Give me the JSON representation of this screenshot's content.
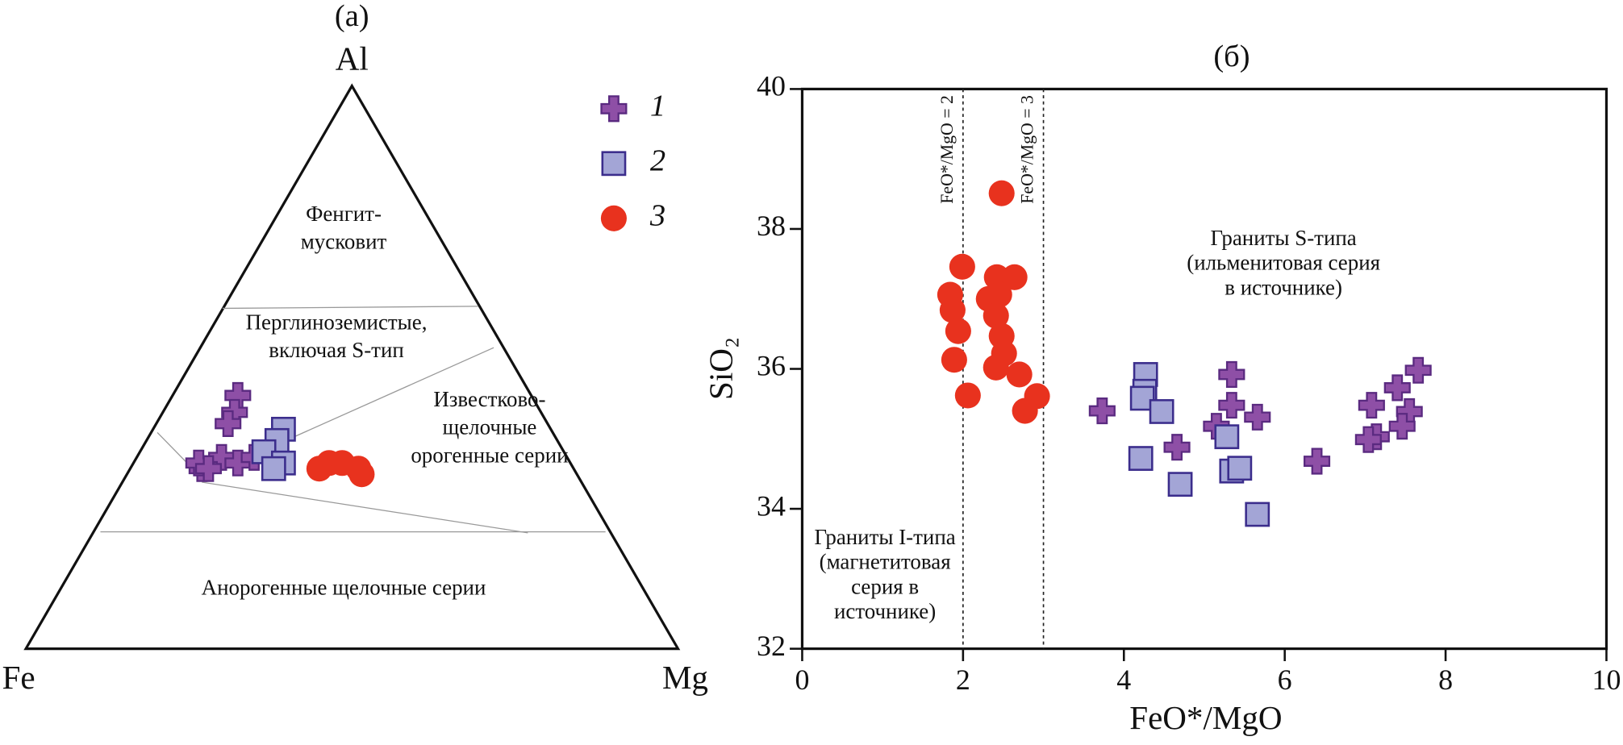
{
  "chart_data": [
    {
      "type": "ternary",
      "title": "(a)",
      "corners": {
        "top": "Al",
        "left": "Fe",
        "right": "Mg"
      },
      "fields": [
        {
          "lines": [
            "Фенгит-",
            "мусковит"
          ]
        },
        {
          "lines": [
            "Перглиноземистые,",
            "включая S-тип"
          ]
        },
        {
          "lines": [
            "Известково-",
            "щелочные",
            "орогенные серии"
          ]
        },
        {
          "lines": [
            "Анорогенные щелочные серии"
          ]
        }
      ],
      "series": [
        {
          "name": "1",
          "marker": "cross",
          "color": "#8e4fa6",
          "fe": [
            45,
            47,
            49,
            57,
            57,
            53,
            51,
            48,
            56
          ],
          "mg": [
            10,
            11,
            11,
            11,
            10,
            13,
            16,
            18,
            12
          ],
          "al": [
            45,
            42,
            40,
            32,
            33,
            34,
            33,
            34,
            32
          ]
        },
        {
          "name": "2",
          "marker": "square",
          "color": "#a3a5d6",
          "fe": [
            41,
            43,
            46,
            44,
            46
          ],
          "mg": [
            20,
            20,
            19,
            23,
            22
          ],
          "al": [
            39,
            37,
            35,
            33,
            32
          ]
        },
        {
          "name": "3",
          "marker": "circle",
          "color": "#e8321e",
          "fe": [
            37,
            35,
            33,
            33,
            39
          ],
          "mg": [
            30,
            32,
            35,
            36,
            29
          ],
          "al": [
            33,
            33,
            32,
            31,
            32
          ]
        }
      ]
    },
    {
      "type": "scatter",
      "title": "(б)",
      "x_label": "FeO*/MgO",
      "y_label": "SiO₂",
      "xlim": [
        0,
        10
      ],
      "xticks": [
        0,
        2,
        4,
        6,
        8,
        10
      ],
      "ylim": [
        32,
        40
      ],
      "yticks": [
        32,
        34,
        36,
        38,
        40
      ],
      "vlines": [
        {
          "value": 2,
          "label": "FeO*/MgO = 2"
        },
        {
          "value": 3,
          "label": "FeO*/MgO = 3"
        }
      ],
      "annotations": [
        {
          "lines": [
            "Граниты S-типа",
            "(ильменитовая серия",
            "в источнике)"
          ]
        },
        {
          "lines": [
            "Граниты I-типа",
            "(магнетитовая",
            "серия в",
            "источнике)"
          ]
        }
      ],
      "series": [
        {
          "marker": "cross",
          "color": "#8e4fa6",
          "x": [
            3.73,
            4.66,
            5.15,
            5.34,
            5.34,
            5.66,
            6.4,
            7.08,
            7.14,
            7.04,
            7.4,
            7.55,
            7.46,
            7.66
          ],
          "y": [
            35.4,
            34.88,
            35.18,
            35.92,
            35.48,
            35.31,
            34.68,
            35.48,
            35.03,
            34.99,
            35.73,
            35.39,
            35.18,
            35.98
          ]
        },
        {
          "marker": "square",
          "color": "#a3a5d6",
          "x": [
            4.27,
            4.26,
            4.23,
            4.47,
            4.21,
            4.7,
            5.28,
            5.34,
            5.44,
            5.66
          ],
          "y": [
            35.92,
            35.68,
            35.58,
            35.39,
            34.72,
            34.35,
            35.03,
            34.54,
            34.58,
            33.92
          ]
        },
        {
          "marker": "circle",
          "color": "#e8321e",
          "x": [
            2.48,
            1.99,
            1.84,
            1.87,
            1.94,
            1.89,
            2.06,
            2.32,
            2.42,
            2.64,
            2.45,
            2.41,
            2.48,
            2.51,
            2.41,
            2.7,
            2.92,
            2.77
          ],
          "y": [
            38.51,
            37.46,
            37.06,
            36.84,
            36.54,
            36.13,
            35.62,
            37.0,
            37.31,
            37.31,
            37.06,
            36.76,
            36.47,
            36.22,
            36.02,
            35.92,
            35.61,
            35.4
          ]
        }
      ]
    }
  ]
}
